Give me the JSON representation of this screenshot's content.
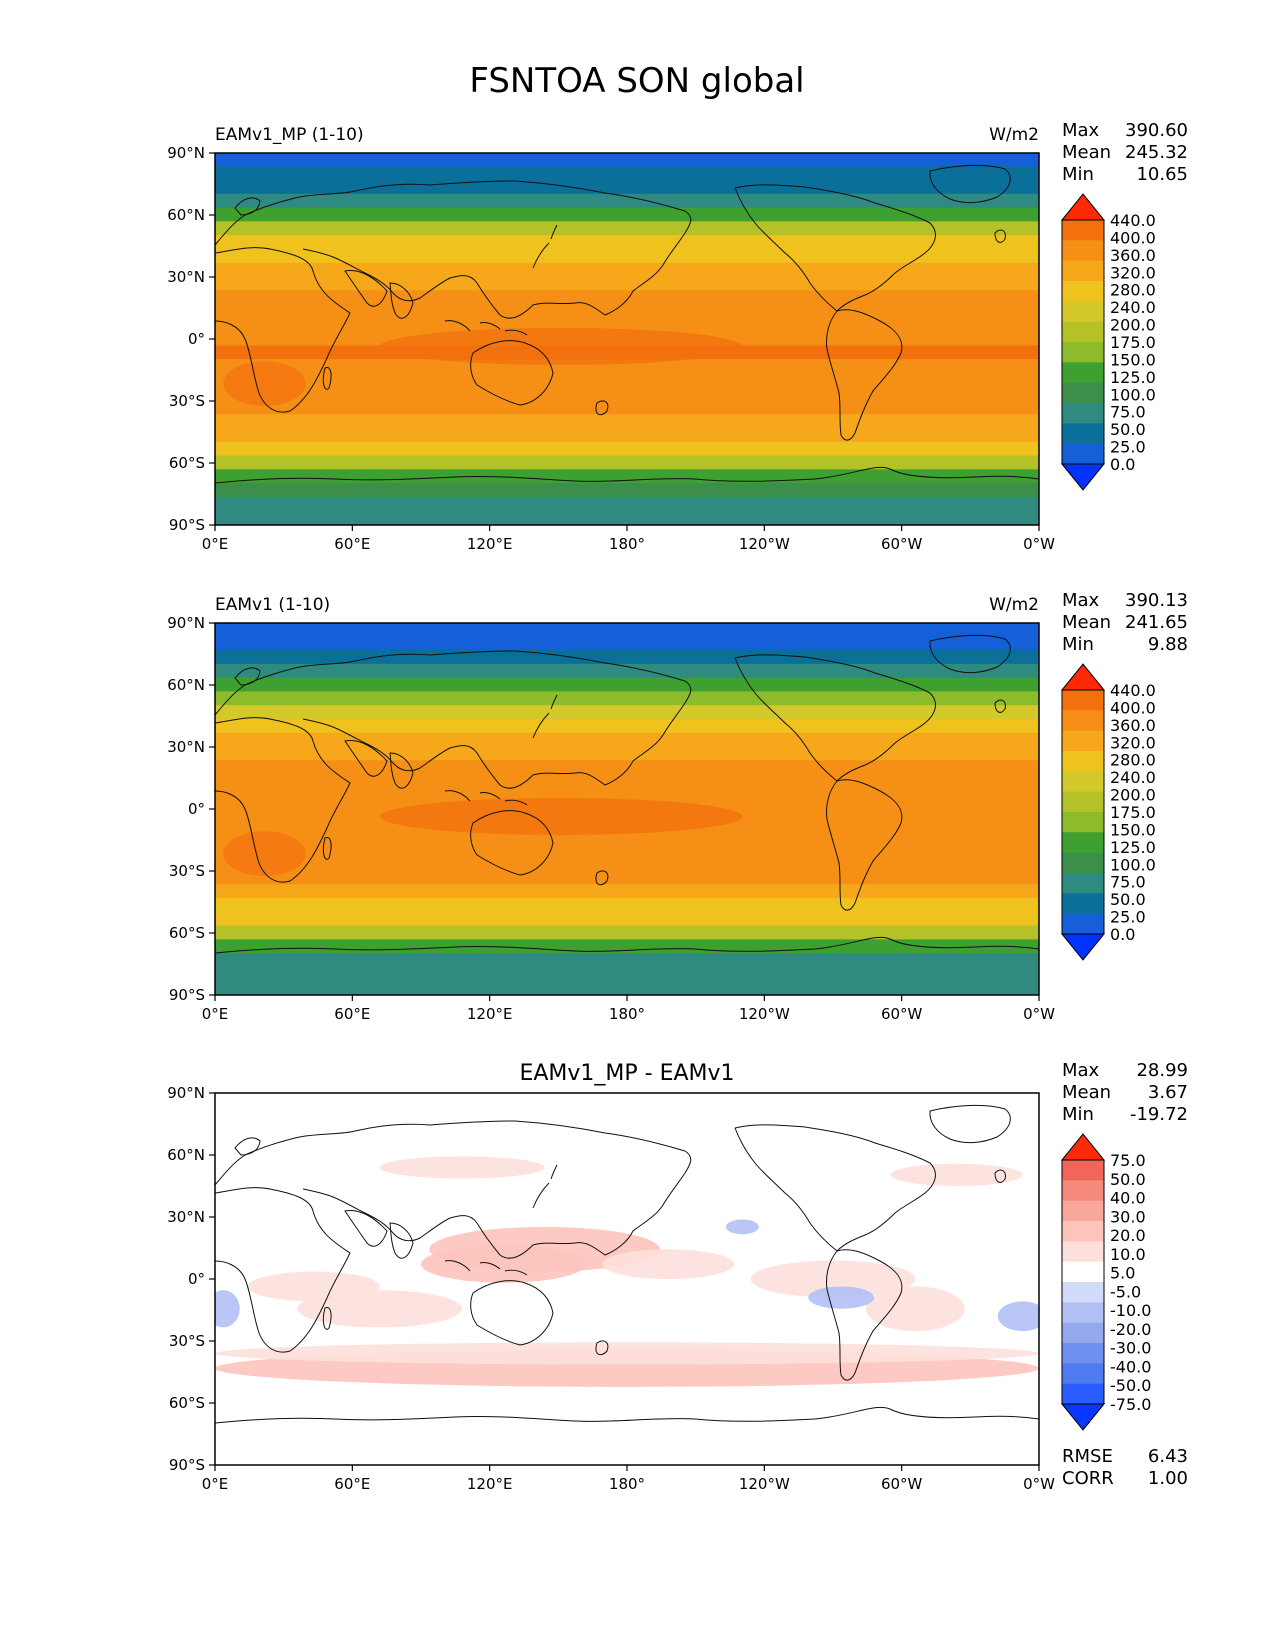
{
  "figure_title": "FSNTOA SON global",
  "axis": {
    "lat_ticks": [
      "90°N",
      "60°N",
      "30°N",
      "0°",
      "30°S",
      "60°S",
      "90°S"
    ],
    "lon_ticks": [
      "0°E",
      "60°E",
      "120°E",
      "180°",
      "120°W",
      "60°W",
      "0°W"
    ]
  },
  "colors": {
    "contour_levels": [
      "#0033ff",
      "#1560d8",
      "#0a709a",
      "#2f8a80",
      "#3b8f4a",
      "#3da030",
      "#8cbc2a",
      "#b4c228",
      "#d4c82a",
      "#f0c21e",
      "#f6a81a",
      "#f68f15",
      "#f3700f",
      "#ff2a05"
    ],
    "diff_levels": [
      "#0a37ff",
      "#2a5cff",
      "#4f7bf0",
      "#6f90ee",
      "#94a8ee",
      "#b3c0f5",
      "#d2dcfa",
      "#ffffff",
      "#fde0dc",
      "#fcc4bc",
      "#f9a79c",
      "#f5897c",
      "#f2655a",
      "#ff2a0a"
    ],
    "map_background_diff": "#ffffff"
  },
  "chart_data": [
    {
      "type": "heatmap",
      "name": "panel-test",
      "title_left": "EAMv1_MP (1-10)",
      "units": "W/m2",
      "stats": {
        "Max": "390.60",
        "Mean": "245.32",
        "Min": "10.65"
      },
      "colorbar_levels": [
        "440.0",
        "400.0",
        "360.0",
        "320.0",
        "280.0",
        "240.0",
        "200.0",
        "175.0",
        "150.0",
        "125.0",
        "100.0",
        "75.0",
        "50.0",
        "25.0",
        "0.0"
      ],
      "zonal_profile_90N_to_90S": [
        18,
        25,
        45,
        70,
        110,
        150,
        200,
        230,
        255,
        270,
        290,
        305,
        312,
        318,
        320,
        318,
        312,
        305,
        290,
        270,
        245,
        215,
        160,
        120,
        75,
        70,
        65
      ],
      "xlim": [
        0,
        360
      ],
      "ylim": [
        -90,
        90
      ]
    },
    {
      "type": "heatmap",
      "name": "panel-reference",
      "title_left": "EAMv1 (1-10)",
      "units": "W/m2",
      "stats": {
        "Max": "390.13",
        "Mean": "241.65",
        "Min": "9.88"
      },
      "colorbar_levels": [
        "440.0",
        "400.0",
        "360.0",
        "320.0",
        "280.0",
        "240.0",
        "200.0",
        "175.0",
        "150.0",
        "125.0",
        "100.0",
        "75.0",
        "50.0",
        "25.0",
        "0.0"
      ],
      "zonal_profile_90N_to_90S": [
        16,
        24,
        42,
        68,
        106,
        146,
        196,
        226,
        252,
        268,
        288,
        302,
        310,
        316,
        318,
        316,
        310,
        300,
        285,
        262,
        238,
        205,
        150,
        115,
        72,
        68,
        64
      ],
      "xlim": [
        0,
        360
      ],
      "ylim": [
        -90,
        90
      ]
    },
    {
      "type": "heatmap",
      "name": "panel-difference",
      "title_center": "EAMv1_MP - EAMv1",
      "stats": {
        "Max": "28.99",
        "Mean": "3.67",
        "Min": "-19.72"
      },
      "metrics": {
        "RMSE": "6.43",
        "CORR": "1.00"
      },
      "colorbar_levels": [
        "75.0",
        "50.0",
        "40.0",
        "30.0",
        "20.0",
        "10.0",
        "5.0",
        "-5.0",
        "-10.0",
        "-20.0",
        "-30.0",
        "-40.0",
        "-50.0",
        "-75.0"
      ],
      "xlim": [
        0,
        360
      ],
      "ylim": [
        -90,
        90
      ]
    }
  ]
}
